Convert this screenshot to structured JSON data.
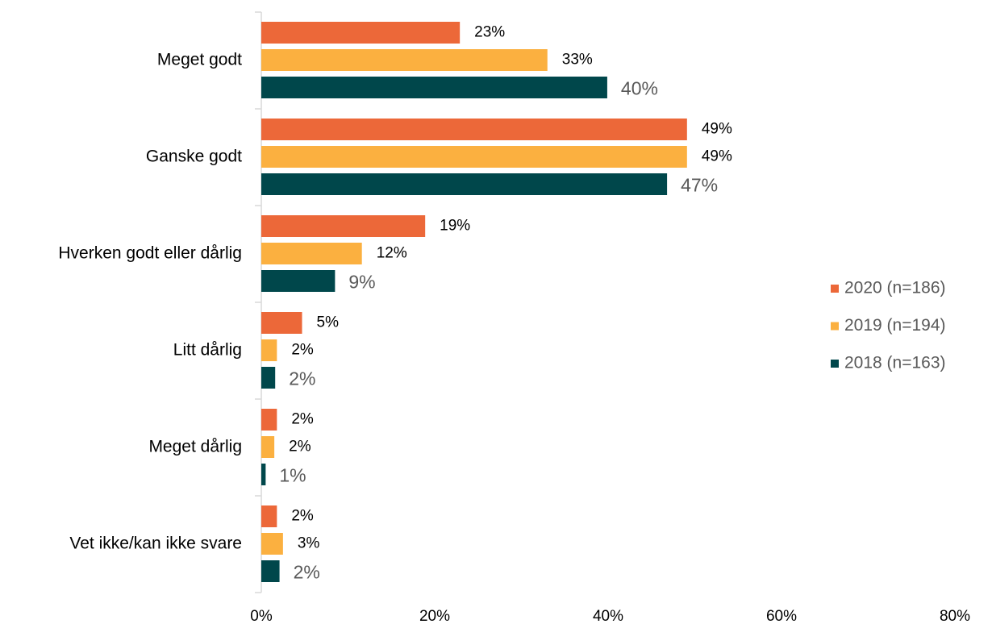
{
  "chart_data": {
    "type": "hbar",
    "categories": [
      "Meget godt",
      "Ganske godt",
      "Hverken godt eller dårlig",
      "Litt dårlig",
      "Meget dårlig",
      "Vet ikke/kan ikke svare"
    ],
    "series": [
      {
        "name": "2020 (n=186)",
        "color": "#ec6839",
        "values": [
          22.9,
          49.1,
          18.9,
          4.7,
          1.8,
          1.8
        ],
        "value_labels": [
          "23%",
          "49%",
          "19%",
          "5%",
          "2%",
          "2%"
        ]
      },
      {
        "name": "2019 (n=194)",
        "color": "#fbb040",
        "values": [
          33.0,
          49.1,
          11.6,
          1.8,
          1.5,
          2.5
        ],
        "value_labels": [
          "33%",
          "49%",
          "12%",
          "2%",
          "2%",
          "3%"
        ]
      },
      {
        "name": "2018 (n=163)",
        "color": "#00474b",
        "values": [
          39.9,
          46.8,
          8.5,
          1.6,
          0.5,
          2.1
        ],
        "value_labels": [
          "40%",
          "47%",
          "9%",
          "2%",
          "1%",
          "2%"
        ]
      }
    ],
    "xlim": [
      0,
      80
    ],
    "xticks": [
      {
        "value": 0,
        "label": "0%"
      },
      {
        "value": 20,
        "label": "20%"
      },
      {
        "value": 40,
        "label": "40%"
      },
      {
        "value": 60,
        "label": "60%"
      },
      {
        "value": 80,
        "label": "80%"
      }
    ],
    "grid": false,
    "legend": "right"
  }
}
